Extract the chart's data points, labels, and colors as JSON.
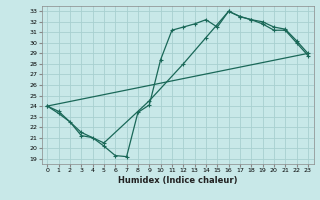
{
  "xlabel": "Humidex (Indice chaleur)",
  "xlim": [
    -0.5,
    23.5
  ],
  "ylim": [
    18.5,
    33.5
  ],
  "xticks": [
    0,
    1,
    2,
    3,
    4,
    5,
    6,
    7,
    8,
    9,
    10,
    11,
    12,
    13,
    14,
    15,
    16,
    17,
    18,
    19,
    20,
    21,
    22,
    23
  ],
  "yticks": [
    19,
    20,
    21,
    22,
    23,
    24,
    25,
    26,
    27,
    28,
    29,
    30,
    31,
    32,
    33
  ],
  "bg_color": "#c8e8e8",
  "grid_color": "#a8d0d0",
  "line_color": "#1a6858",
  "line1_x": [
    0,
    1,
    2,
    3,
    4,
    5,
    6,
    7,
    8,
    9,
    10,
    11,
    12,
    13,
    14,
    15,
    16,
    17,
    18,
    19,
    20,
    21,
    22,
    23
  ],
  "line1_y": [
    24.0,
    23.3,
    22.5,
    21.2,
    21.0,
    20.2,
    19.3,
    19.2,
    23.4,
    24.1,
    28.4,
    31.2,
    31.5,
    31.8,
    32.2,
    31.5,
    33.0,
    32.5,
    32.2,
    31.8,
    31.2,
    31.2,
    30.0,
    28.8
  ],
  "line2_x": [
    0,
    1,
    3,
    5,
    9,
    12,
    14,
    16,
    17,
    18,
    19,
    20,
    21,
    22,
    23
  ],
  "line2_y": [
    24.0,
    23.5,
    21.5,
    20.5,
    24.5,
    28.0,
    30.5,
    33.0,
    32.5,
    32.2,
    32.0,
    31.5,
    31.3,
    30.2,
    29.0
  ],
  "line3_x": [
    0,
    23
  ],
  "line3_y": [
    24.0,
    29.0
  ]
}
